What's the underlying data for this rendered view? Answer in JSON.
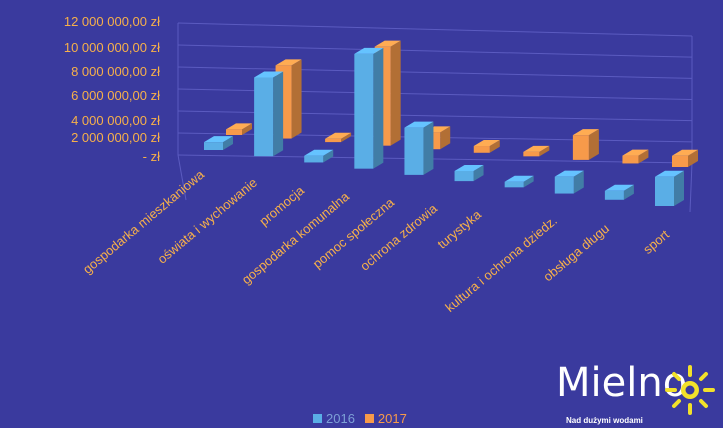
{
  "chart_data": {
    "type": "bar",
    "categories": [
      "gospodarka mieszkaniowa",
      "oświata i wychowanie",
      "promocja",
      "gospodarka komunalna",
      "pomoc społeczna",
      "ochrona zdrowia",
      "turystyka",
      "kultura i ochrona dziedz.",
      "obsługa długu",
      "sport"
    ],
    "series": [
      {
        "name": "2016",
        "values": [
          700000,
          7000000,
          600000,
          10200000,
          4200000,
          900000,
          500000,
          1500000,
          800000,
          2600000
        ]
      },
      {
        "name": "2017",
        "values": [
          500000,
          6500000,
          300000,
          8800000,
          1500000,
          600000,
          400000,
          2200000,
          700000,
          1000000
        ]
      }
    ],
    "yticks": [
      "12 000 000,00 zł",
      "10 000 000,00 zł",
      "8 000 000,00 zł",
      "6 000 000,00 zł",
      "4 000 000,00 zł",
      "2 000 000,00 zł",
      "-   zł"
    ],
    "ylim": [
      0,
      12000000
    ],
    "grid": true,
    "legend_position": "bottom",
    "colors": {
      "2016": "#5aaee6",
      "2017": "#f79a4a",
      "background": "#3a3a9e",
      "label": "#f7b04a"
    }
  },
  "logo": {
    "text": "Mielno",
    "tagline": "Nad dużymi wodami"
  }
}
